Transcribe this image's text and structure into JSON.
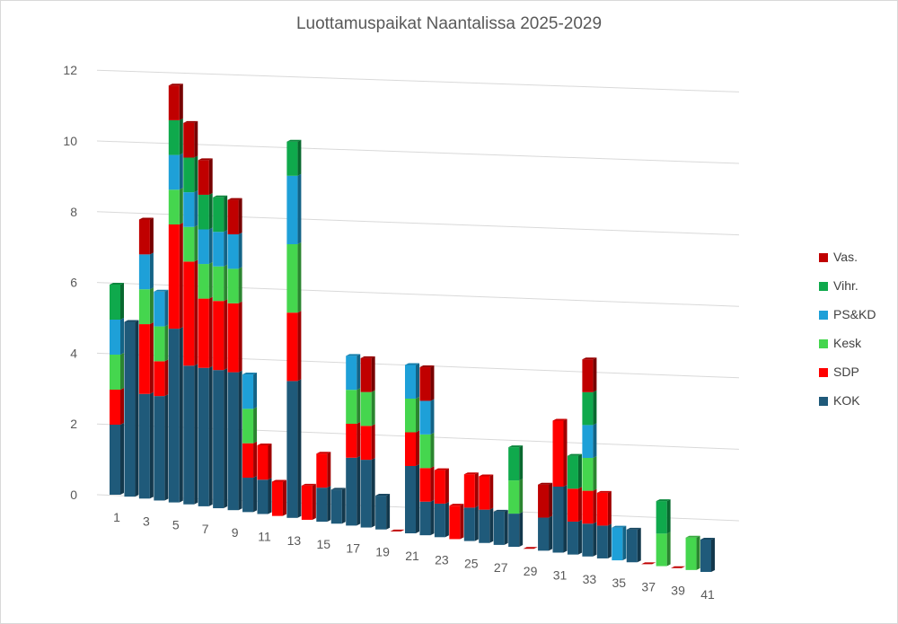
{
  "chart_data": {
    "type": "bar",
    "stacked": true,
    "title": "Luottamuspaikat Naantalissa 2025-2029",
    "xlabel": "",
    "ylabel": "",
    "ylim": [
      0,
      12
    ],
    "yticks": [
      0,
      2,
      4,
      6,
      8,
      10,
      12
    ],
    "x_tick_labels": [
      "1",
      "3",
      "5",
      "7",
      "9",
      "11",
      "13",
      "15",
      "17",
      "19",
      "21",
      "23",
      "25",
      "27",
      "29",
      "31",
      "33",
      "35",
      "37",
      "39",
      "41"
    ],
    "categories": [
      "1",
      "2",
      "3",
      "4",
      "5",
      "6",
      "7",
      "8",
      "9",
      "10",
      "11",
      "12",
      "13",
      "14",
      "15",
      "16",
      "17",
      "18",
      "19",
      "20",
      "21",
      "22",
      "23",
      "24",
      "25",
      "26",
      "27",
      "28",
      "29",
      "30",
      "31",
      "32",
      "33",
      "34",
      "35",
      "36",
      "37",
      "38",
      "39",
      "40",
      "41"
    ],
    "grid": true,
    "legend_position": "right",
    "series": [
      {
        "name": "KOK",
        "color": "#1f5a7a",
        "values": [
          2,
          5,
          3,
          3,
          5,
          4,
          4,
          4,
          4,
          1,
          1,
          0,
          4,
          0,
          1,
          1,
          2,
          2,
          1,
          0,
          2,
          1,
          1,
          0,
          1,
          1,
          1,
          1,
          0,
          1,
          2,
          1,
          1,
          1,
          0,
          1,
          0,
          0,
          0,
          0,
          1
        ]
      },
      {
        "name": "SDP",
        "color": "#ff0000",
        "values": [
          1,
          0,
          2,
          1,
          3,
          3,
          2,
          2,
          2,
          1,
          1,
          1,
          2,
          1,
          1,
          0,
          1,
          1,
          0,
          0,
          1,
          1,
          1,
          1,
          1,
          1,
          0,
          0,
          0,
          0,
          2,
          1,
          1,
          1,
          0,
          0,
          0,
          0,
          0,
          0,
          0
        ]
      },
      {
        "name": "Kesk",
        "color": "#45d64e",
        "values": [
          1,
          0,
          1,
          1,
          1,
          1,
          1,
          1,
          1,
          1,
          0,
          0,
          2,
          0,
          0,
          0,
          1,
          1,
          0,
          0,
          1,
          1,
          0,
          0,
          0,
          0,
          0,
          1,
          0,
          0,
          0,
          0,
          1,
          0,
          0,
          0,
          0,
          1,
          0,
          1,
          0
        ]
      },
      {
        "name": "PS&KD",
        "color": "#1ea0d8",
        "values": [
          1,
          0,
          1,
          1,
          1,
          1,
          1,
          1,
          1,
          1,
          0,
          0,
          2,
          0,
          0,
          0,
          1,
          0,
          0,
          0,
          1,
          1,
          0,
          0,
          0,
          0,
          0,
          0,
          0,
          0,
          0,
          0,
          1,
          0,
          1,
          0,
          0,
          0,
          0,
          0,
          0
        ]
      },
      {
        "name": "Vihr.",
        "color": "#0fa94c",
        "values": [
          1,
          0,
          0,
          0,
          1,
          1,
          1,
          1,
          0,
          0,
          0,
          0,
          1,
          0,
          0,
          0,
          0,
          0,
          0,
          0,
          0,
          0,
          0,
          0,
          0,
          0,
          0,
          1,
          0,
          0,
          0,
          1,
          1,
          0,
          0,
          0,
          0,
          1,
          0,
          0,
          0
        ]
      },
      {
        "name": "Vas.",
        "color": "#c00000",
        "values": [
          0,
          0,
          1,
          0,
          1,
          1,
          1,
          0,
          1,
          0,
          0,
          0,
          0,
          0,
          0,
          0,
          0,
          1,
          0,
          0,
          0,
          1,
          0,
          0,
          0,
          0,
          0,
          0,
          0,
          1,
          0,
          0,
          1,
          0,
          0,
          0,
          0,
          0,
          0,
          0,
          0
        ]
      }
    ]
  }
}
